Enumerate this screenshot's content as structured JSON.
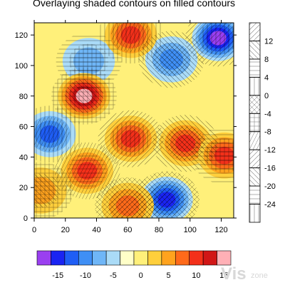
{
  "chart_data": {
    "type": "heatmap",
    "title": "Overlaying shaded contours on filled contours",
    "x_ticks": [
      0,
      20,
      40,
      60,
      80,
      100,
      120
    ],
    "y_ticks": [
      0,
      20,
      40,
      60,
      80,
      100,
      120
    ],
    "xlim": [
      0,
      128
    ],
    "ylim": [
      0,
      128
    ],
    "fill_colorbar": {
      "orientation": "horizontal",
      "labels": [
        -15,
        -10,
        -5,
        0,
        5,
        10,
        15
      ],
      "colors": [
        "#9a3ff0",
        "#1a24f2",
        "#1f5ef5",
        "#3f8ff5",
        "#6fb6f7",
        "#aadbf7",
        "#ffffc8",
        "#fff07a",
        "#ffcf3c",
        "#ffa31e",
        "#ff6a1a",
        "#f3301a",
        "#d11616",
        "#ffb0b6"
      ]
    },
    "pattern_colorbar": {
      "orientation": "vertical",
      "labels": [
        12,
        8,
        4,
        0,
        -4,
        -8,
        -12,
        -16,
        -20,
        -24
      ]
    },
    "features": [
      {
        "x": 118,
        "y": 118,
        "value": -18
      },
      {
        "x": 88,
        "y": 104,
        "value": -10
      },
      {
        "x": 35,
        "y": 103,
        "value": -6
      },
      {
        "x": 10,
        "y": 55,
        "value": -12
      },
      {
        "x": 85,
        "y": 12,
        "value": -14
      },
      {
        "x": 32,
        "y": 80,
        "value": 17
      },
      {
        "x": 34,
        "y": 31,
        "value": 12
      },
      {
        "x": 62,
        "y": 52,
        "value": 12
      },
      {
        "x": 97,
        "y": 49,
        "value": 13
      },
      {
        "x": 122,
        "y": 41,
        "value": 12
      },
      {
        "x": 62,
        "y": 120,
        "value": 11
      },
      {
        "x": 60,
        "y": 8,
        "value": 10
      },
      {
        "x": 4,
        "y": 18,
        "value": 8
      }
    ]
  },
  "watermark": {
    "big": "Vis",
    "small": "zone"
  }
}
